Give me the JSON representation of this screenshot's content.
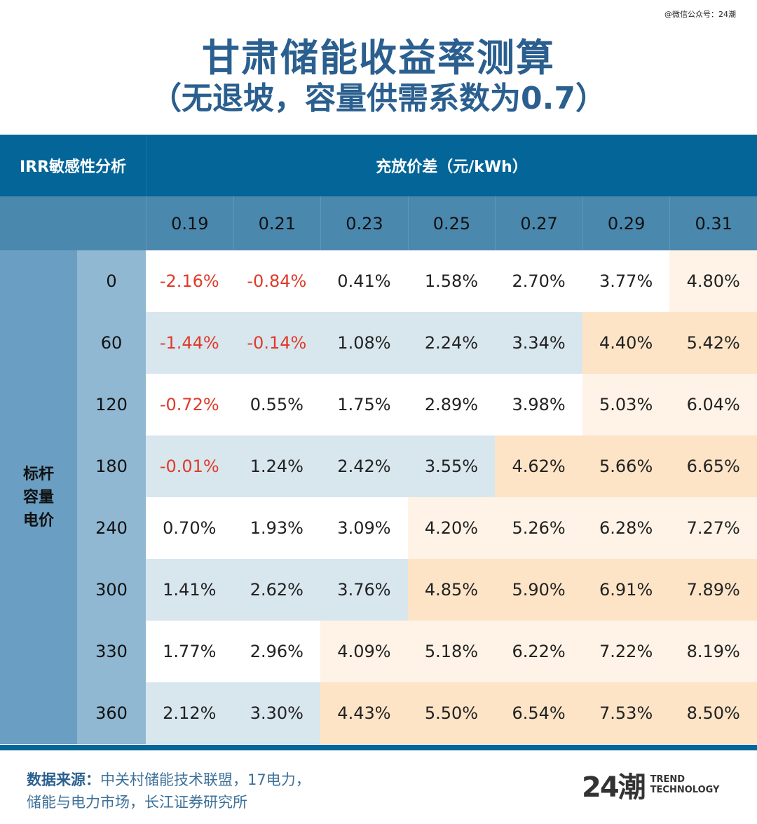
{
  "watermark": "@微信公众号：24潮",
  "title": "甘肃储能收益率测算",
  "subtitle": "（无退坡，容量供需系数为0.7）",
  "table": {
    "corner_label": "IRR敏感性分析",
    "column_group_label": "充放价差（元/kWh）",
    "row_group_label": "标杆容量电价",
    "columns": [
      "0.19",
      "0.21",
      "0.23",
      "0.25",
      "0.27",
      "0.29",
      "0.31"
    ],
    "rows": [
      {
        "label": "0",
        "values": [
          "-2.16%",
          "-0.84%",
          "0.41%",
          "1.58%",
          "2.70%",
          "3.77%",
          "4.80%"
        ]
      },
      {
        "label": "60",
        "values": [
          "-1.44%",
          "-0.14%",
          "1.08%",
          "2.24%",
          "3.34%",
          "4.40%",
          "5.42%"
        ]
      },
      {
        "label": "120",
        "values": [
          "-0.72%",
          "0.55%",
          "1.75%",
          "2.89%",
          "3.98%",
          "5.03%",
          "6.04%"
        ]
      },
      {
        "label": "180",
        "values": [
          "-0.01%",
          "1.24%",
          "2.42%",
          "3.55%",
          "4.62%",
          "5.66%",
          "6.65%"
        ]
      },
      {
        "label": "240",
        "values": [
          "0.70%",
          "1.93%",
          "3.09%",
          "4.20%",
          "5.26%",
          "6.28%",
          "7.27%"
        ]
      },
      {
        "label": "300",
        "values": [
          "1.41%",
          "2.62%",
          "3.76%",
          "4.85%",
          "5.90%",
          "6.91%",
          "7.89%"
        ]
      },
      {
        "label": "330",
        "values": [
          "1.77%",
          "2.96%",
          "4.09%",
          "5.18%",
          "6.22%",
          "7.22%",
          "8.19%"
        ]
      },
      {
        "label": "360",
        "values": [
          "2.12%",
          "3.30%",
          "4.43%",
          "5.50%",
          "6.54%",
          "7.53%",
          "8.50%"
        ]
      }
    ]
  },
  "source": {
    "label": "数据来源：",
    "line1": "中关村储能技术联盟，17电力，",
    "line2": "储能与电力市场，长江证券研究所"
  },
  "logo": {
    "mark": "24潮",
    "line1": "TREND",
    "line2": "TECHNOLOGY"
  },
  "colors": {
    "header": "#036598",
    "negative": "#e03a2a",
    "highlight": "#fde4c7"
  }
}
